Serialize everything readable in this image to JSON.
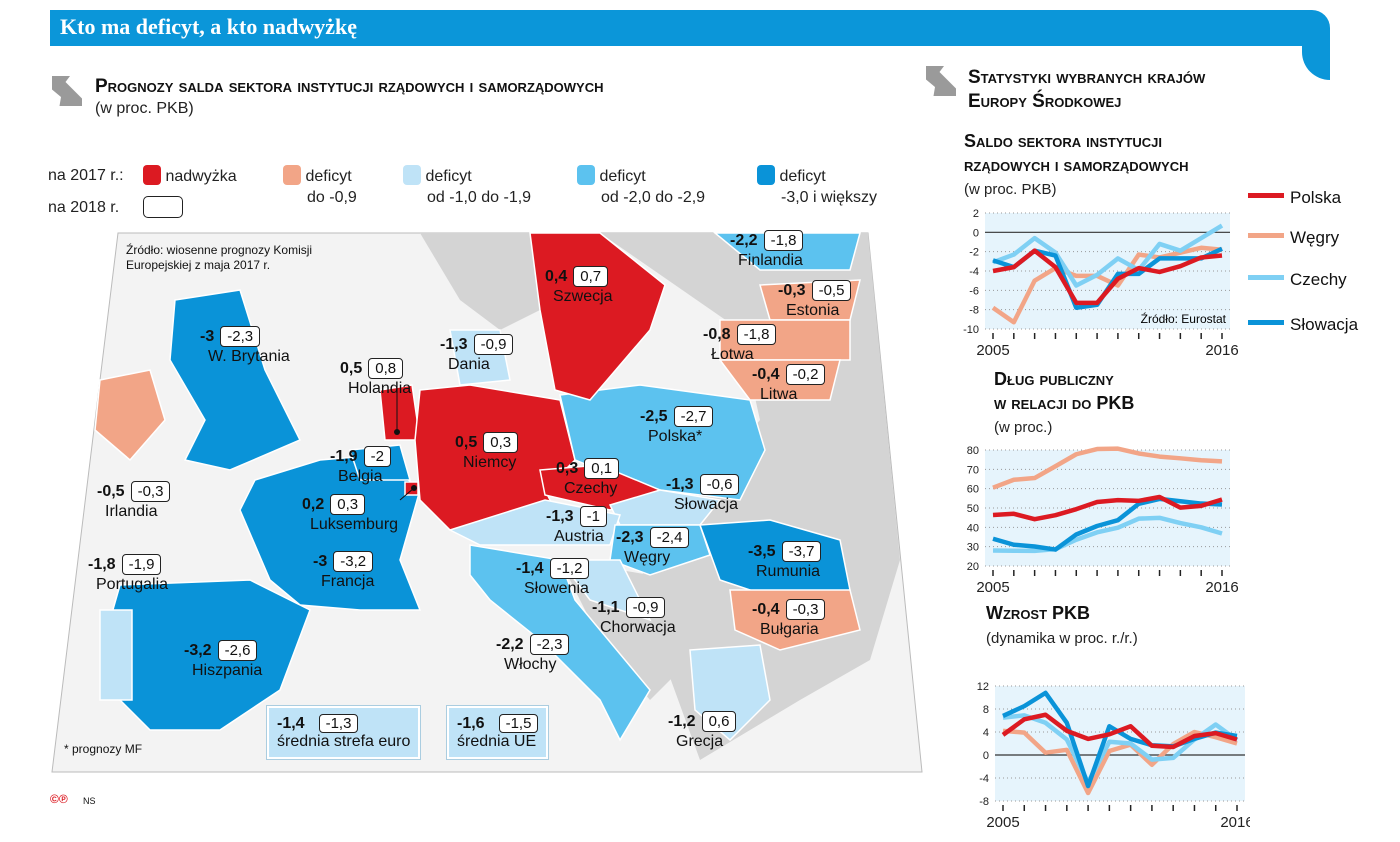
{
  "title": "Kto ma deficyt, a kto nadwyżkę",
  "map_section": {
    "title": "Prognozy salda sektora instytucji rządowych i samorządowych",
    "unit": "(w proc. PKB)"
  },
  "legend": {
    "row2017": "na 2017 r.:",
    "row2018": "na 2018 r.",
    "items": [
      {
        "label1": "nadwyżka",
        "label2": "",
        "color": "#dc1a22"
      },
      {
        "label1": "deficyt",
        "label2": "do -0,9",
        "color": "#f2a587"
      },
      {
        "label1": "deficyt",
        "label2": "od -1,0 do -1,9",
        "color": "#bfe3f7"
      },
      {
        "label1": "deficyt",
        "label2": "od -2,0 do -2,9",
        "color": "#5cc2ef"
      },
      {
        "label1": "deficyt",
        "label2": "-3,0 i większy",
        "color": "#0a93d8"
      }
    ]
  },
  "map": {
    "source": "Źródło: wiosenne prognozy Komisji Europejskiej z maja 2017 r.",
    "footnote": "* prognozy MF",
    "credit": "NS",
    "countries": [
      {
        "name": "Finlandia",
        "v2017": "-2,2",
        "v2018": "-1,8"
      },
      {
        "name": "Szwecja",
        "v2017": "0,4",
        "v2018": "0,7"
      },
      {
        "name": "Estonia",
        "v2017": "-0,3",
        "v2018": "-0,5"
      },
      {
        "name": "W. Brytania",
        "v2017": "-3",
        "v2018": "-2,3"
      },
      {
        "name": "Dania",
        "v2017": "-1,3",
        "v2018": "-0,9"
      },
      {
        "name": "Łotwa",
        "v2017": "-0,8",
        "v2018": "-1,8"
      },
      {
        "name": "Holandia",
        "v2017": "0,5",
        "v2018": "0,8"
      },
      {
        "name": "Litwa",
        "v2017": "-0,4",
        "v2018": "-0,2"
      },
      {
        "name": "Polska*",
        "v2017": "-2,5",
        "v2018": "-2,7"
      },
      {
        "name": "Belgia",
        "v2017": "-1,9",
        "v2018": "-2"
      },
      {
        "name": "Niemcy",
        "v2017": "0,5",
        "v2018": "0,3"
      },
      {
        "name": "Czechy",
        "v2017": "0,3",
        "v2018": "0,1"
      },
      {
        "name": "Irlandia",
        "v2017": "-0,5",
        "v2018": "-0,3"
      },
      {
        "name": "Słowacja",
        "v2017": "-1,3",
        "v2018": "-0,6"
      },
      {
        "name": "Luksemburg",
        "v2017": "0,2",
        "v2018": "0,3"
      },
      {
        "name": "Austria",
        "v2017": "-1,3",
        "v2018": "-1"
      },
      {
        "name": "Węgry",
        "v2017": "-2,3",
        "v2018": "-2,4"
      },
      {
        "name": "Rumunia",
        "v2017": "-3,5",
        "v2018": "-3,7"
      },
      {
        "name": "Portugalia",
        "v2017": "-1,8",
        "v2018": "-1,9"
      },
      {
        "name": "Francja",
        "v2017": "-3",
        "v2018": "-3,2"
      },
      {
        "name": "Słowenia",
        "v2017": "-1,4",
        "v2018": "-1,2"
      },
      {
        "name": "Chorwacja",
        "v2017": "-1,1",
        "v2018": "-0,9"
      },
      {
        "name": "Bułgaria",
        "v2017": "-0,4",
        "v2018": "-0,3"
      },
      {
        "name": "Hiszpania",
        "v2017": "-3,2",
        "v2018": "-2,6"
      },
      {
        "name": "Włochy",
        "v2017": "-2,2",
        "v2018": "-2,3"
      },
      {
        "name": "Grecja",
        "v2017": "-1,2",
        "v2018": "0,6"
      }
    ],
    "averages": [
      {
        "name": "średnia strefa euro",
        "v2017": "-1,4",
        "v2018": "-1,3"
      },
      {
        "name": "średnia UE",
        "v2017": "-1,6",
        "v2018": "-1,5"
      }
    ]
  },
  "stats_section": {
    "title1": "Statystyki wybranych krajów",
    "title2": "Europy Środkowej"
  },
  "series_legend": [
    {
      "name": "Polska",
      "color": "#dc1a22"
    },
    {
      "name": "Węgry",
      "color": "#f2a587"
    },
    {
      "name": "Czechy",
      "color": "#7fd0f4"
    },
    {
      "name": "Słowacja",
      "color": "#0a93d8"
    }
  ],
  "chart_data": [
    {
      "type": "line",
      "title1": "Saldo sektora instytucji",
      "title2": "rządowych i samorządowych",
      "subtitle": "(w proc. PKB)",
      "source": "Źródło: Eurostat",
      "x": [
        2005,
        2006,
        2007,
        2008,
        2009,
        2010,
        2011,
        2012,
        2013,
        2014,
        2015,
        2016
      ],
      "xtick_labels": [
        "2005",
        "2016"
      ],
      "ylim": [
        -10,
        2
      ],
      "yticks": [
        2,
        0,
        -2,
        -4,
        -6,
        -8,
        -10
      ],
      "grid": true,
      "series": [
        {
          "name": "Polska",
          "values": [
            -4.0,
            -3.6,
            -1.9,
            -3.6,
            -7.3,
            -7.3,
            -4.8,
            -3.7,
            -4.1,
            -3.5,
            -2.6,
            -2.4
          ]
        },
        {
          "name": "Węgry",
          "values": [
            -7.8,
            -9.3,
            -5.0,
            -3.7,
            -4.5,
            -4.5,
            -5.5,
            -2.3,
            -2.6,
            -2.1,
            -1.6,
            -1.8
          ]
        },
        {
          "name": "Czechy",
          "values": [
            -3.1,
            -2.3,
            -0.6,
            -2.1,
            -5.5,
            -4.4,
            -2.7,
            -3.9,
            -1.2,
            -1.9,
            -0.6,
            0.7
          ]
        },
        {
          "name": "Słowacja",
          "values": [
            -2.9,
            -3.6,
            -1.9,
            -2.4,
            -7.8,
            -7.5,
            -4.3,
            -4.3,
            -2.7,
            -2.7,
            -2.7,
            -1.7
          ]
        }
      ]
    },
    {
      "type": "line",
      "title1": "Dług publiczny",
      "title2": "w relacji do PKB",
      "subtitle": "(w proc.)",
      "x": [
        2005,
        2006,
        2007,
        2008,
        2009,
        2010,
        2011,
        2012,
        2013,
        2014,
        2015,
        2016
      ],
      "xtick_labels": [
        "2005",
        "2016"
      ],
      "ylim": [
        20,
        80
      ],
      "yticks": [
        80,
        70,
        60,
        50,
        40,
        30,
        20
      ],
      "grid": true,
      "series": [
        {
          "name": "Polska",
          "values": [
            46.4,
            47.0,
            44.2,
            46.3,
            49.4,
            53.1,
            54.1,
            53.7,
            55.7,
            50.2,
            51.1,
            54.4
          ]
        },
        {
          "name": "Węgry",
          "values": [
            60.5,
            64.6,
            65.5,
            71.6,
            77.8,
            80.5,
            80.7,
            78.2,
            76.6,
            75.7,
            74.7,
            74.1
          ]
        },
        {
          "name": "Czechy",
          "values": [
            28.0,
            27.9,
            27.8,
            28.7,
            33.6,
            37.4,
            39.8,
            44.5,
            44.9,
            42.2,
            40.0,
            36.8
          ]
        },
        {
          "name": "Słowacja",
          "values": [
            34.1,
            31.0,
            30.1,
            28.5,
            36.3,
            40.7,
            43.7,
            52.2,
            54.7,
            53.5,
            52.3,
            51.8
          ]
        }
      ]
    },
    {
      "type": "line",
      "title1": "Wzrost PKB",
      "title2": "",
      "subtitle": "(dynamika w proc. r./r.)",
      "x": [
        2005,
        2006,
        2007,
        2008,
        2009,
        2010,
        2011,
        2012,
        2013,
        2014,
        2015,
        2016
      ],
      "xtick_labels": [
        "2005",
        "2016"
      ],
      "ylim": [
        -8,
        12
      ],
      "yticks": [
        12,
        8,
        4,
        0,
        -4,
        -8
      ],
      "grid": true,
      "series": [
        {
          "name": "Polska",
          "values": [
            3.5,
            6.2,
            7.0,
            4.2,
            2.8,
            3.6,
            5.0,
            1.6,
            1.4,
            3.3,
            3.8,
            2.7
          ]
        },
        {
          "name": "Węgry",
          "values": [
            4.2,
            3.9,
            0.4,
            0.9,
            -6.6,
            0.7,
            1.8,
            -1.7,
            1.9,
            4.0,
            3.1,
            2.0
          ]
        },
        {
          "name": "Czechy",
          "values": [
            6.5,
            6.9,
            5.6,
            2.7,
            -4.8,
            2.3,
            2.0,
            -0.8,
            -0.5,
            2.7,
            5.3,
            2.6
          ]
        },
        {
          "name": "Słowacja",
          "values": [
            6.8,
            8.5,
            10.8,
            5.6,
            -5.4,
            5.0,
            2.8,
            1.7,
            1.5,
            2.8,
            3.9,
            3.3
          ]
        }
      ]
    }
  ]
}
